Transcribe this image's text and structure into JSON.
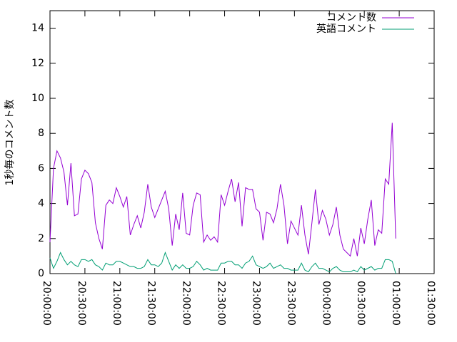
{
  "chart_data": {
    "type": "line",
    "ylabel": "1秒毎のコメント数",
    "x": [
      "20:00:00",
      "20:03:00",
      "20:06:00",
      "20:09:00",
      "20:12:00",
      "20:15:00",
      "20:18:00",
      "20:21:00",
      "20:24:00",
      "20:27:00",
      "20:30:00",
      "20:33:00",
      "20:36:00",
      "20:39:00",
      "20:42:00",
      "20:45:00",
      "20:48:00",
      "20:51:00",
      "20:54:00",
      "20:57:00",
      "21:00:00",
      "21:03:00",
      "21:06:00",
      "21:09:00",
      "21:12:00",
      "21:15:00",
      "21:18:00",
      "21:21:00",
      "21:24:00",
      "21:27:00",
      "21:30:00",
      "21:33:00",
      "21:36:00",
      "21:39:00",
      "21:42:00",
      "21:45:00",
      "21:48:00",
      "21:51:00",
      "21:54:00",
      "21:57:00",
      "22:00:00",
      "22:03:00",
      "22:06:00",
      "22:09:00",
      "22:12:00",
      "22:15:00",
      "22:18:00",
      "22:21:00",
      "22:24:00",
      "22:27:00",
      "22:30:00",
      "22:33:00",
      "22:36:00",
      "22:39:00",
      "22:42:00",
      "22:45:00",
      "22:48:00",
      "22:51:00",
      "22:54:00",
      "22:57:00",
      "23:00:00",
      "23:03:00",
      "23:06:00",
      "23:09:00",
      "23:12:00",
      "23:15:00",
      "23:18:00",
      "23:21:00",
      "23:24:00",
      "23:27:00",
      "23:30:00",
      "23:33:00",
      "23:36:00",
      "23:39:00",
      "23:42:00",
      "23:45:00",
      "23:48:00",
      "23:51:00",
      "23:54:00",
      "23:57:00",
      "00:00:00",
      "00:03:00",
      "00:06:00",
      "00:09:00",
      "00:12:00",
      "00:15:00",
      "00:18:00",
      "00:21:00",
      "00:24:00",
      "00:27:00",
      "00:30:00",
      "00:33:00",
      "00:36:00",
      "00:39:00",
      "00:42:00",
      "00:45:00",
      "00:48:00",
      "00:51:00",
      "00:54:00",
      "00:57:00"
    ],
    "series": [
      {
        "name": "コメント数",
        "color": "#9400d3",
        "values": [
          1.8,
          6.0,
          7.0,
          6.6,
          5.8,
          3.9,
          6.3,
          3.3,
          3.4,
          5.4,
          5.9,
          5.7,
          5.2,
          2.9,
          2.0,
          1.4,
          3.9,
          4.2,
          4.0,
          4.9,
          4.4,
          3.8,
          4.4,
          2.2,
          2.8,
          3.3,
          2.6,
          3.5,
          5.1,
          3.8,
          3.2,
          3.7,
          4.2,
          4.7,
          3.7,
          1.6,
          3.4,
          2.5,
          4.6,
          2.3,
          2.2,
          3.9,
          4.6,
          4.5,
          1.8,
          2.2,
          1.9,
          2.1,
          1.8,
          4.5,
          3.9,
          4.7,
          5.4,
          4.1,
          5.2,
          2.7,
          4.9,
          4.8,
          4.8,
          3.7,
          3.5,
          1.9,
          3.5,
          3.4,
          2.9,
          3.7,
          5.1,
          3.9,
          1.7,
          3.0,
          2.6,
          2.2,
          3.9,
          2.2,
          1.1,
          2.9,
          4.8,
          2.8,
          3.6,
          3.1,
          2.2,
          2.8,
          3.8,
          2.2,
          1.4,
          1.2,
          1.0,
          2.0,
          1.0,
          2.6,
          1.7,
          3.1,
          4.2,
          1.6,
          2.5,
          2.3,
          5.4,
          5.1,
          8.6,
          2.0
        ]
      },
      {
        "name": "英語コメント",
        "color": "#009e73",
        "values": [
          0.9,
          0.3,
          0.7,
          1.2,
          0.8,
          0.5,
          0.7,
          0.5,
          0.4,
          0.8,
          0.8,
          0.7,
          0.8,
          0.5,
          0.4,
          0.2,
          0.6,
          0.5,
          0.5,
          0.7,
          0.7,
          0.6,
          0.5,
          0.4,
          0.4,
          0.3,
          0.3,
          0.4,
          0.8,
          0.5,
          0.5,
          0.4,
          0.6,
          1.2,
          0.7,
          0.2,
          0.5,
          0.3,
          0.5,
          0.3,
          0.3,
          0.4,
          0.7,
          0.5,
          0.2,
          0.3,
          0.2,
          0.2,
          0.2,
          0.6,
          0.6,
          0.7,
          0.7,
          0.5,
          0.5,
          0.3,
          0.6,
          0.7,
          1.0,
          0.5,
          0.4,
          0.3,
          0.4,
          0.6,
          0.3,
          0.4,
          0.5,
          0.3,
          0.3,
          0.2,
          0.2,
          0.2,
          0.6,
          0.2,
          0.1,
          0.4,
          0.6,
          0.3,
          0.3,
          0.2,
          0.1,
          0.3,
          0.4,
          0.2,
          0.1,
          0.1,
          0.1,
          0.2,
          0.1,
          0.4,
          0.2,
          0.3,
          0.4,
          0.2,
          0.3,
          0.3,
          0.8,
          0.8,
          0.7,
          0.0
        ]
      }
    ],
    "xlim": [
      "20:00:00",
      "01:30:00"
    ],
    "xticks": [
      "20:00:00",
      "20:30:00",
      "21:00:00",
      "21:30:00",
      "22:00:00",
      "22:30:00",
      "23:00:00",
      "23:30:00",
      "00:00:00",
      "00:30:00",
      "01:00:00",
      "01:30:00"
    ],
    "ylim": [
      0,
      15
    ],
    "yticks": [
      0,
      2,
      4,
      6,
      8,
      10,
      12,
      14
    ],
    "legend": "top-right"
  }
}
